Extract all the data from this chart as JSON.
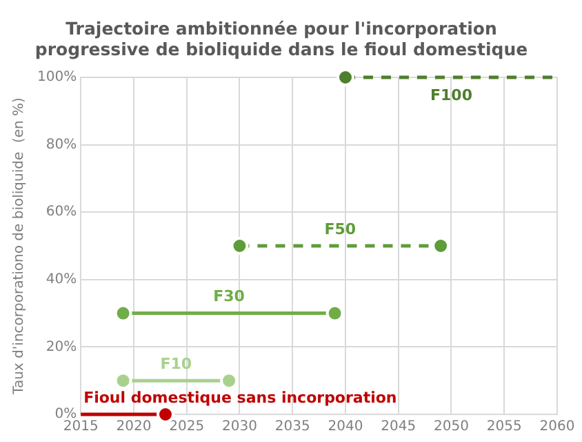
{
  "chart_data": {
    "type": "line",
    "title": [
      "Trajectoire ambitionnée pour l'incorporation",
      "progressive de bioliquide dans le fioul domestique"
    ],
    "ylabel": "Taux d'incorporationo de bioliquide  (en %)",
    "xlim": [
      2015,
      2060
    ],
    "xticks": [
      2015,
      2020,
      2025,
      2030,
      2035,
      2040,
      2045,
      2050,
      2055,
      2060
    ],
    "ylim": [
      0,
      100
    ],
    "yticks": [
      {
        "value": 0,
        "label": "0%"
      },
      {
        "value": 20,
        "label": "20%"
      },
      {
        "value": 40,
        "label": "40%"
      },
      {
        "value": 60,
        "label": "60%"
      },
      {
        "value": 80,
        "label": "80%"
      },
      {
        "value": 100,
        "label": "100%"
      }
    ],
    "grid": true,
    "legend": false,
    "marker": "circle",
    "series": [
      {
        "name": "Fioul domestique sans incorporation",
        "color": "#c00000",
        "x": [
          2015,
          2023
        ],
        "values": [
          0,
          0
        ],
        "line_style": "solid"
      },
      {
        "name": "F10",
        "color": "#a9d18e",
        "x": [
          2019,
          2029
        ],
        "values": [
          10,
          10
        ],
        "line_style": "solid"
      },
      {
        "name": "F30",
        "color": "#70ad47",
        "x": [
          2019,
          2039
        ],
        "values": [
          30,
          30
        ],
        "line_style": "solid"
      },
      {
        "name": "F50",
        "color": "#5e9c3a",
        "x": [
          2030,
          2049
        ],
        "values": [
          50,
          50
        ],
        "line_style": "dashed"
      },
      {
        "name": "F100",
        "color": "#4f7f2e",
        "x": [
          2040,
          2060
        ],
        "values": [
          100,
          100
        ],
        "line_style": "dashed"
      }
    ]
  }
}
